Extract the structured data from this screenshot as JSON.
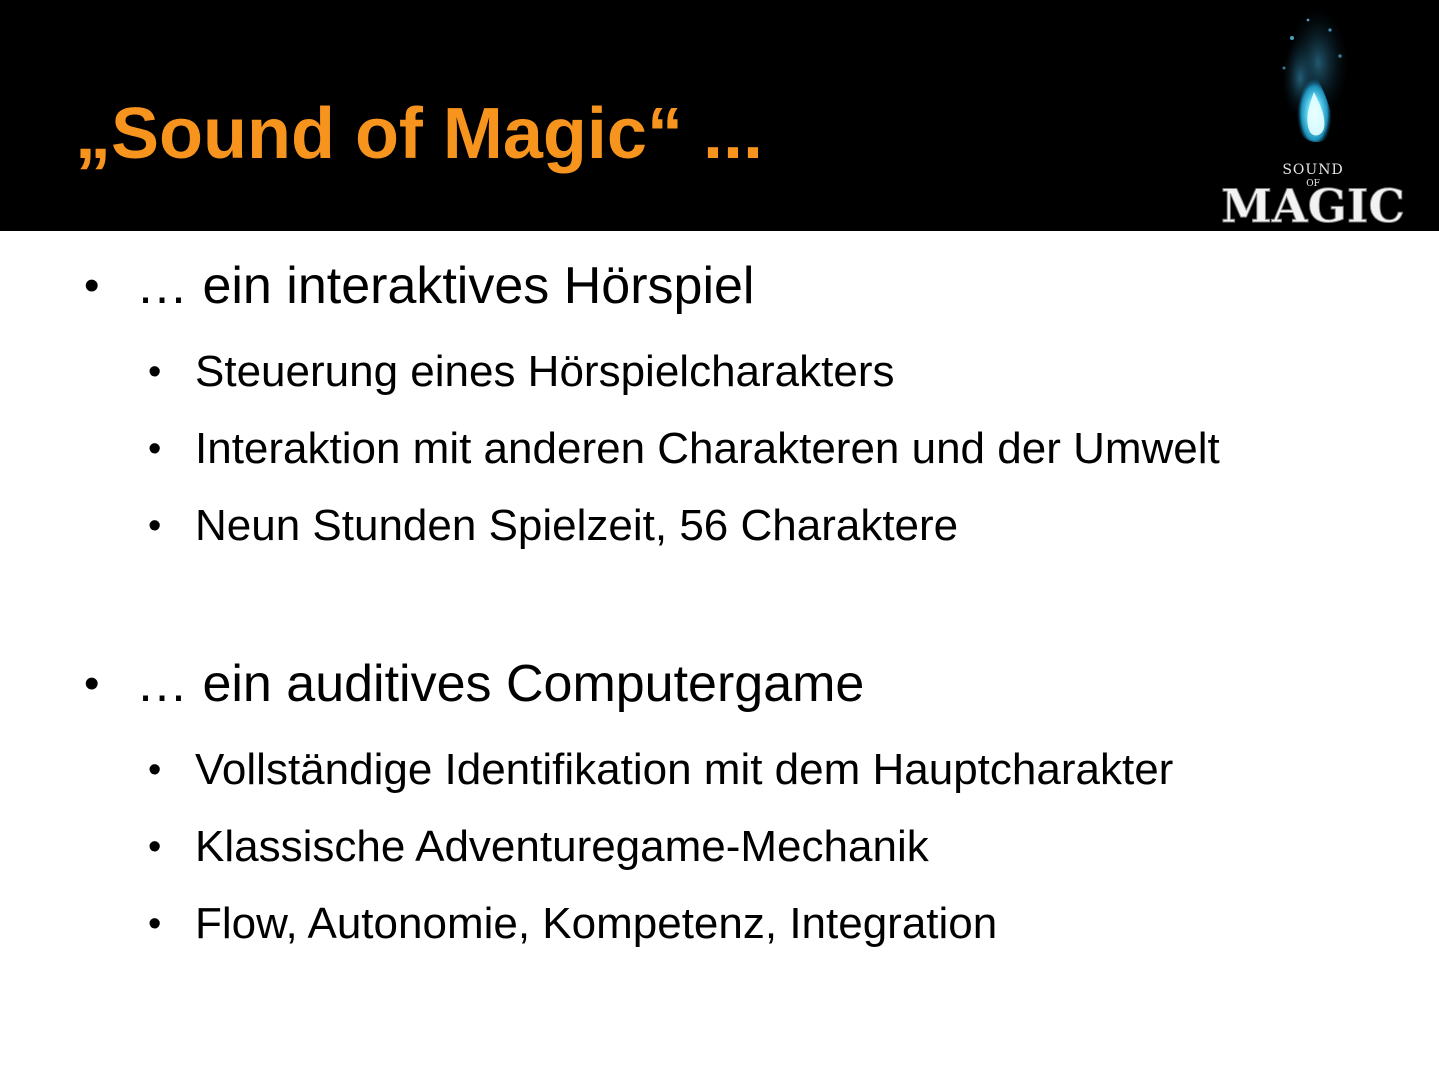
{
  "colors": {
    "header_background": "#000000",
    "title": "#f7941d",
    "body_text": "#000000",
    "background": "#ffffff"
  },
  "slide": {
    "title": "„Sound of Magic“ ...",
    "logo": {
      "line1": "SOUND",
      "line2": "OF",
      "line3": "MAGIC",
      "icon": "blue-flame-icon"
    },
    "sections": [
      {
        "heading": "… ein interaktives Hörspiel",
        "items": [
          "Steuerung eines Hörspielcharakters",
          "Interaktion mit anderen Charakteren und der Umwelt",
          "Neun Stunden Spielzeit, 56 Charaktere"
        ]
      },
      {
        "heading": "… ein auditives Computergame",
        "items": [
          "Vollständige Identifikation mit dem Hauptcharakter",
          "Klassische Adventuregame-Mechanik",
          "Flow, Autonomie, Kompetenz, Integration"
        ]
      }
    ],
    "bullet_glyph": "•"
  }
}
